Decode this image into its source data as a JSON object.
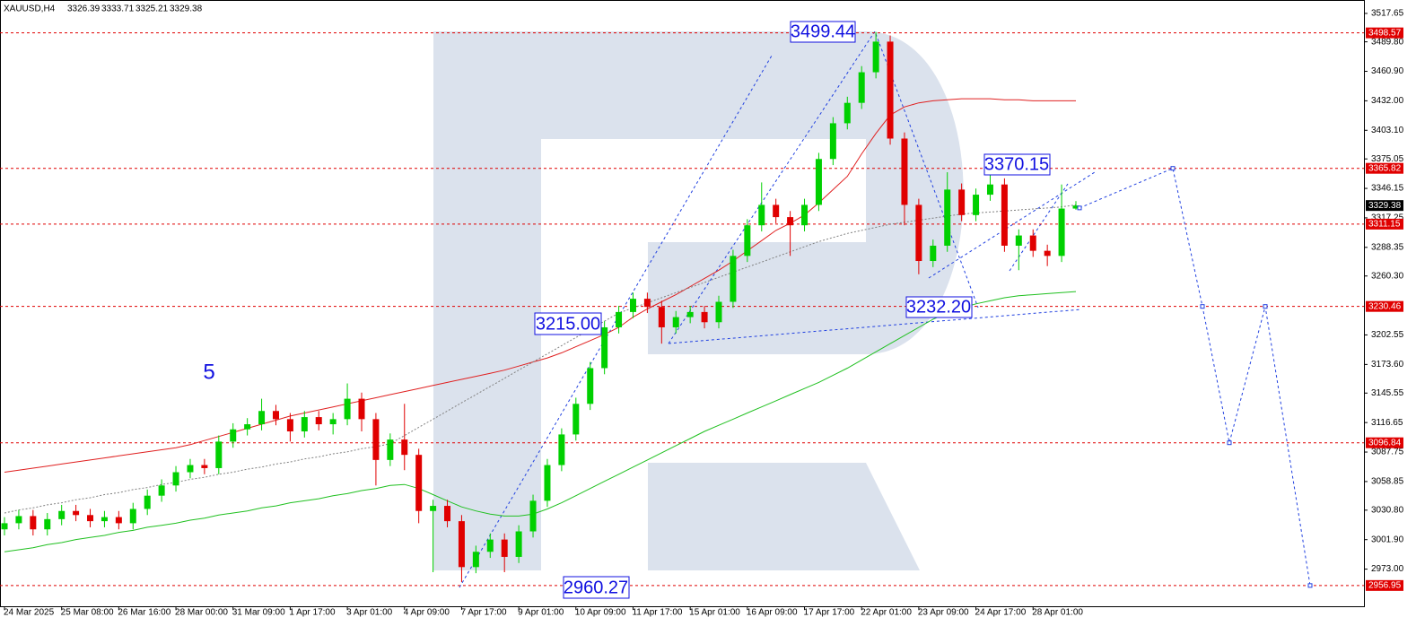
{
  "chart_data": {
    "type": "candlestick",
    "header": "XAUUSD,H4",
    "header_ohlc": [
      3326.39,
      3333.71,
      3325.21,
      3329.38
    ],
    "wave_count": "5",
    "wave_labels": [
      "3499.44",
      "3370.15",
      "3215.00",
      "3232.20",
      "2960.27"
    ],
    "ylim": [
      2936.6,
      3530.8
    ],
    "yticks": [
      {
        "value": 3517.65,
        "label": "3517.65"
      },
      {
        "value": 3489.8,
        "label": "3489.80"
      },
      {
        "value": 3460.9,
        "label": "3460.90"
      },
      {
        "value": 3432,
        "label": "3432.00"
      },
      {
        "value": 3403.1,
        "label": "3403.10"
      },
      {
        "value": 3375.05,
        "label": "3375.05"
      },
      {
        "value": 3346.15,
        "label": "3346.15"
      },
      {
        "value": 3317.25,
        "label": "3317.25"
      },
      {
        "value": 3288.35,
        "label": "3288.35"
      },
      {
        "value": 3260.3,
        "label": "3260.30"
      },
      {
        "value": 3202.55,
        "label": "3202.55"
      },
      {
        "value": 3173.6,
        "label": "3173.60"
      },
      {
        "value": 3145.55,
        "label": "3145.55"
      },
      {
        "value": 3116.65,
        "label": "3116.65"
      },
      {
        "value": 3087.75,
        "label": "3087.75"
      },
      {
        "value": 3058.85,
        "label": "3058.85"
      },
      {
        "value": 3030.8,
        "label": "3030.80"
      },
      {
        "value": 3001.9,
        "label": "3001.90"
      },
      {
        "value": 2973,
        "label": "2973.00"
      }
    ],
    "levels": [
      3498.57,
      3365.82,
      3311.15,
      3230.46,
      3096.84,
      2956.95
    ],
    "level_color": "#e00000",
    "last_price": 3329.38,
    "up_color": "#00d000",
    "down_color": "#e00000",
    "x": [
      "24 Mar 2025",
      null,
      null,
      null,
      "25 Mar 08:00",
      null,
      null,
      null,
      "26 Mar 16:00",
      null,
      null,
      null,
      "28 Mar 00:00",
      null,
      null,
      null,
      "31 Mar 09:00",
      null,
      null,
      null,
      "1 Apr 17:00",
      null,
      null,
      null,
      "3 Apr 01:00",
      null,
      null,
      null,
      "4 Apr 09:00",
      null,
      null,
      null,
      "7 Apr 17:00",
      null,
      null,
      null,
      "9 Apr 01:00",
      null,
      null,
      null,
      "10 Apr 09:00",
      null,
      null,
      null,
      "11 Apr 17:00",
      null,
      null,
      null,
      "15 Apr 01:00",
      null,
      null,
      null,
      "16 Apr 09:00",
      null,
      null,
      null,
      "17 Apr 17:00",
      null,
      null,
      null,
      "22 Apr 01:00",
      null,
      null,
      null,
      "23 Apr 09:00",
      null,
      null,
      null,
      "24 Apr 17:00",
      null,
      null,
      null,
      "28 Apr 01:00",
      null,
      null,
      null
    ],
    "open": [
      3012,
      3018,
      3025,
      3012,
      3022,
      3030,
      3026,
      3020,
      3024,
      3018,
      3032,
      3045,
      3055,
      3068,
      3075,
      3072,
      3098,
      3110,
      3115,
      3128,
      3120,
      3108,
      3122,
      3115,
      3120,
      3140,
      3120,
      3080,
      3100,
      3085,
      3030,
      3035,
      3020,
      2975,
      2990,
      3002,
      2985,
      3010,
      3040,
      3075,
      3105,
      3135,
      3170,
      3210,
      3225,
      3238,
      3230,
      3210,
      3220,
      3225,
      3215,
      3235,
      3280,
      3310,
      3330,
      3318,
      3310,
      3330,
      3375,
      3410,
      3430,
      3460,
      3490,
      3395,
      3330,
      3275,
      3290,
      3345,
      3320,
      3340,
      3350,
      3290,
      3300,
      3285,
      3280,
      3326.39
    ],
    "high": [
      3024,
      3031,
      3031,
      3028,
      3036,
      3036,
      3032,
      3030,
      3030,
      3038,
      3051,
      3061,
      3074,
      3081,
      3081,
      3104,
      3116,
      3121,
      3140,
      3134,
      3126,
      3128,
      3128,
      3126,
      3155,
      3146,
      3126,
      3106,
      3135,
      3091,
      3041,
      3041,
      3026,
      2996,
      3008,
      3008,
      3016,
      3046,
      3081,
      3111,
      3141,
      3176,
      3216,
      3231,
      3244,
      3244,
      3236,
      3226,
      3231,
      3231,
      3241,
      3286,
      3316,
      3352,
      3336,
      3324,
      3336,
      3381,
      3416,
      3436,
      3466,
      3499.44,
      3496,
      3401,
      3336,
      3296,
      3362,
      3351,
      3346,
      3370.15,
      3356,
      3306,
      3306,
      3291,
      3350,
      3333.71
    ],
    "low": [
      3006,
      3012,
      3006,
      3006,
      3016,
      3020,
      3014,
      3014,
      3012,
      3012,
      3026,
      3039,
      3049,
      3062,
      3066,
      3066,
      3092,
      3104,
      3109,
      3114,
      3098,
      3102,
      3109,
      3105,
      3114,
      3108,
      3055,
      3074,
      3070,
      3018,
      2970,
      3014,
      2960.27,
      2969,
      2984,
      2970,
      2979,
      3004,
      3034,
      3069,
      3099,
      3129,
      3164,
      3204,
      3219,
      3224,
      3194,
      3204,
      3214,
      3209,
      3209,
      3229,
      3274,
      3304,
      3312,
      3280,
      3304,
      3324,
      3369,
      3404,
      3424,
      3454,
      3389,
      3310,
      3262,
      3269,
      3284,
      3314,
      3314,
      3334,
      3284,
      3266,
      3279,
      3270,
      3274,
      3325.21
    ],
    "close": [
      3018,
      3025,
      3012,
      3022,
      3030,
      3026,
      3020,
      3024,
      3018,
      3032,
      3045,
      3055,
      3068,
      3075,
      3072,
      3098,
      3110,
      3115,
      3128,
      3120,
      3108,
      3122,
      3115,
      3120,
      3140,
      3120,
      3080,
      3100,
      3085,
      3030,
      3035,
      3020,
      2975,
      2990,
      3002,
      2985,
      3010,
      3040,
      3075,
      3105,
      3135,
      3170,
      3210,
      3225,
      3238,
      3230,
      3210,
      3220,
      3225,
      3215,
      3235,
      3280,
      3310,
      3330,
      3318,
      3310,
      3330,
      3375,
      3410,
      3430,
      3460,
      3490,
      3395,
      3330,
      3275,
      3290,
      3345,
      3320,
      3340,
      3350,
      3290,
      3300,
      3285,
      3280,
      3326.39,
      3329.38
    ],
    "lines": [
      {
        "color": "#e02020",
        "style": "solid",
        "values": [
          3068,
          3070,
          3072,
          3074,
          3076,
          3078,
          3080,
          3082,
          3084,
          3086,
          3088,
          3090,
          3092,
          3095,
          3099,
          3103,
          3107,
          3111,
          3115,
          3119,
          3123,
          3126,
          3129,
          3132,
          3135,
          3138,
          3141,
          3144,
          3147,
          3150,
          3153,
          3156,
          3159,
          3162,
          3165,
          3168,
          3172,
          3176,
          3180,
          3185,
          3191,
          3197,
          3203,
          3210,
          3220,
          3228,
          3235,
          3242,
          3250,
          3258,
          3266,
          3275,
          3285,
          3295,
          3305,
          3312,
          3320,
          3332,
          3345,
          3358,
          3380,
          3400,
          3418,
          3426,
          3430,
          3432,
          3433,
          3434,
          3434,
          3434,
          3433,
          3433,
          3432,
          3432,
          3432,
          3432
        ]
      },
      {
        "color": "#20c020",
        "style": "solid",
        "values": [
          2990,
          2992,
          2994,
          2997,
          2999,
          3002,
          3004,
          3006,
          3009,
          3011,
          3014,
          3016,
          3018,
          3021,
          3023,
          3026,
          3028,
          3030,
          3033,
          3035,
          3038,
          3040,
          3042,
          3045,
          3047,
          3050,
          3052,
          3055,
          3056,
          3052,
          3046,
          3040,
          3034,
          3030,
          3027,
          3025,
          3025,
          3027,
          3032,
          3038,
          3045,
          3052,
          3059,
          3066,
          3073,
          3080,
          3087,
          3094,
          3101,
          3108,
          3114,
          3120,
          3126,
          3132,
          3138,
          3144,
          3150,
          3156,
          3163,
          3170,
          3178,
          3186,
          3194,
          3202,
          3210,
          3218,
          3224,
          3229,
          3233,
          3236,
          3239,
          3241,
          3242,
          3243,
          3244,
          3245
        ]
      },
      {
        "color": "#808080",
        "style": "dotted",
        "values": [
          3028,
          3031,
          3033,
          3036,
          3038,
          3041,
          3043,
          3046,
          3048,
          3051,
          3053,
          3056,
          3058,
          3061,
          3063,
          3066,
          3068,
          3071,
          3073,
          3076,
          3078,
          3081,
          3083,
          3086,
          3088,
          3091,
          3093,
          3096,
          3104,
          3112,
          3120,
          3128,
          3136,
          3144,
          3152,
          3160,
          3168,
          3176,
          3184,
          3192,
          3200,
          3208,
          3216,
          3224,
          3229,
          3234,
          3239,
          3244,
          3249,
          3254,
          3259,
          3264,
          3269,
          3274,
          3279,
          3284,
          3289,
          3294,
          3298,
          3302,
          3305,
          3308,
          3311,
          3313,
          3315,
          3317,
          3319,
          3321,
          3322,
          3323,
          3324,
          3325,
          3326,
          3327,
          3328,
          3330
        ]
      }
    ],
    "forecast": {
      "color": "#2040e0",
      "values": [
        3327,
        3365.82,
        3230.46,
        3096.84,
        3230.46,
        2956.95
      ]
    }
  }
}
